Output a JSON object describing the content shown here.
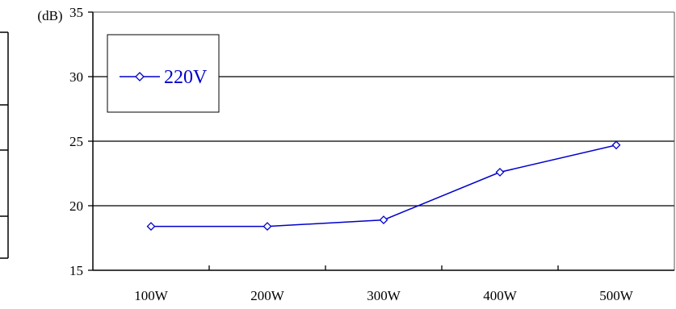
{
  "chart_data": {
    "type": "line",
    "title": "",
    "xlabel": "",
    "ylabel": "(dB)",
    "categories": [
      "100W",
      "200W",
      "300W",
      "400W",
      "500W"
    ],
    "ylim": [
      15,
      35
    ],
    "yticks": [
      15,
      20,
      25,
      30,
      35
    ],
    "grid": true,
    "legend_position": "top-left",
    "series": [
      {
        "name": "220V",
        "color": "#0000cc",
        "marker": "diamond",
        "values": [
          18.4,
          18.4,
          18.9,
          22.6,
          24.7
        ]
      }
    ]
  }
}
